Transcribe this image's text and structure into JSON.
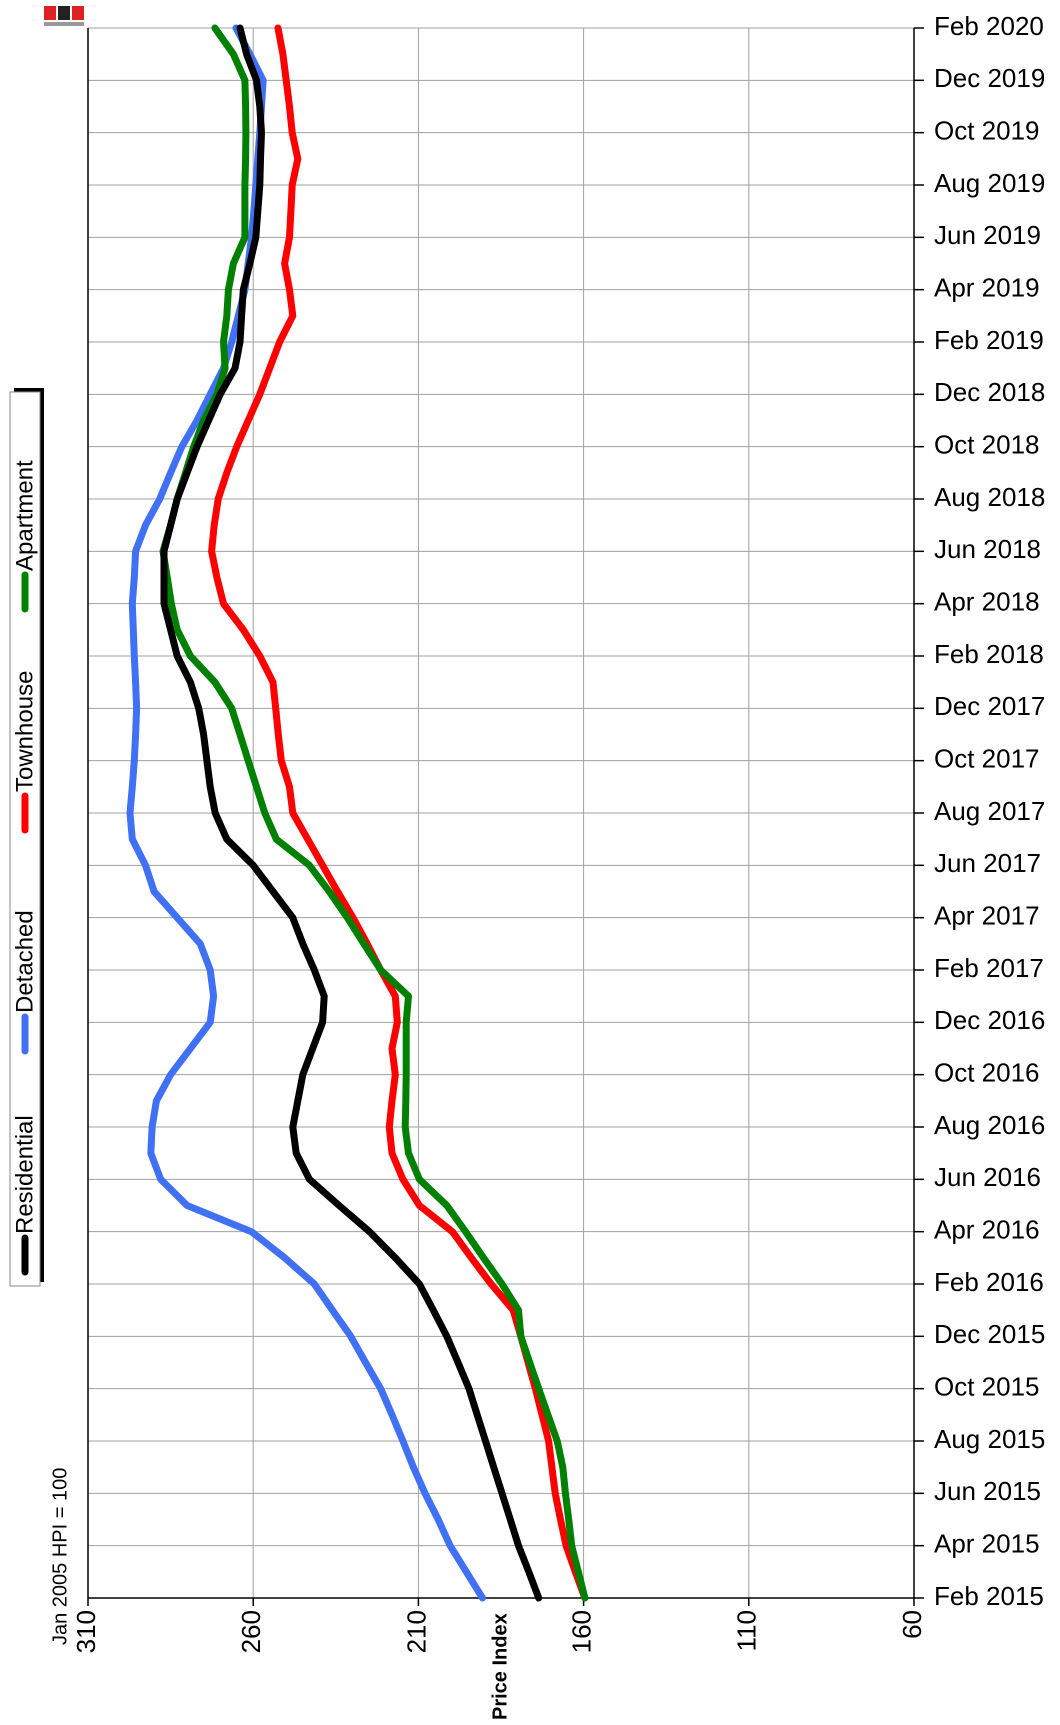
{
  "chart_data": {
    "type": "line",
    "annotation": "Jan 2005 HPI = 100",
    "ylabel": "Price Index",
    "categories": [
      "Feb 2015",
      null,
      "Apr 2015",
      null,
      "Jun 2015",
      null,
      "Aug 2015",
      null,
      "Oct 2015",
      null,
      "Dec 2015",
      null,
      "Feb 2016",
      null,
      "Apr 2016",
      null,
      "Jun 2016",
      null,
      "Aug 2016",
      null,
      "Oct 2016",
      null,
      "Dec 2016",
      null,
      "Feb 2017",
      null,
      "Apr 2017",
      null,
      "Jun 2017",
      null,
      "Aug 2017",
      null,
      "Oct 2017",
      null,
      "Dec 2017",
      null,
      "Feb 2018",
      null,
      "Apr 2018",
      null,
      "Jun 2018",
      null,
      "Aug 2018",
      null,
      "Oct 2018",
      null,
      "Dec 2018",
      null,
      "Feb 2019",
      null,
      "Apr 2019",
      null,
      "Jun 2019",
      null,
      "Aug 2019",
      null,
      "Oct 2019",
      null,
      "Dec 2019",
      null,
      "Feb 2020"
    ],
    "ylim": [
      310,
      60
    ],
    "yticks": [
      310,
      260,
      210,
      160,
      110,
      60
    ],
    "grid": true,
    "series": [
      {
        "name": "Residential",
        "color": "#000000",
        "values": [
          173.6,
          176.6,
          179.7,
          182.2,
          184.7,
          187.2,
          189.7,
          192.2,
          194.7,
          198,
          201.4,
          205.5,
          209.7,
          217,
          224.8,
          234,
          243,
          247,
          248,
          246.5,
          245,
          242,
          239,
          238.5,
          241.5,
          245,
          248,
          254,
          260,
          268,
          271.5,
          273,
          274,
          275,
          276.5,
          279,
          283,
          285,
          287,
          287,
          287,
          285,
          283,
          280,
          277,
          273.5,
          270,
          265.5,
          264,
          263.5,
          263,
          261,
          259.2,
          258.6,
          258,
          257.8,
          257.5,
          258,
          259,
          262,
          264
        ]
      },
      {
        "name": "Detached",
        "color": "#4070f4",
        "values": [
          190.6,
          195.5,
          200.4,
          204,
          208,
          211.5,
          214.7,
          218,
          221.4,
          226,
          230.5,
          236,
          241.5,
          250.5,
          260.5,
          280,
          288,
          291,
          290.6,
          289.3,
          285,
          279,
          273,
          272,
          273,
          276,
          283,
          290,
          292.6,
          296.6,
          297.3,
          296.6,
          296,
          295.6,
          295.3,
          295.6,
          296,
          296.3,
          296.6,
          296,
          295.6,
          292.6,
          288.3,
          285,
          281.6,
          277,
          273,
          269,
          266.5,
          264.5,
          262.5,
          261.5,
          260.5,
          259.8,
          259.2,
          258.6,
          258,
          257.5,
          257,
          261,
          265.2
        ]
      },
      {
        "name": "Townhouse",
        "color": "#ff0000",
        "values": [
          159.6,
          162.5,
          165.3,
          167,
          168.6,
          169.6,
          170.6,
          172.6,
          174.6,
          176.8,
          179,
          181.3,
          188,
          194,
          199.7,
          209.7,
          214.7,
          218,
          218.8,
          218,
          217,
          218,
          216.4,
          217,
          221.4,
          225.5,
          229.8,
          234.5,
          239,
          243.5,
          248,
          249,
          251.5,
          252.4,
          253.2,
          254,
          258,
          263,
          269,
          271,
          272.6,
          271.8,
          270.6,
          268,
          265,
          261.5,
          258,
          255,
          252,
          248,
          249,
          250.5,
          249,
          248.6,
          248.2,
          246.5,
          248.2,
          249,
          250,
          251,
          252.5
        ]
      },
      {
        "name": "Apartment",
        "color": "#008000",
        "values": [
          159.6,
          161.6,
          163.6,
          164.5,
          165.5,
          166.3,
          168,
          170.8,
          173.6,
          176.3,
          179,
          179.7,
          184.7,
          190.3,
          195.7,
          201.4,
          209.7,
          213,
          214,
          213.8,
          213.7,
          213.7,
          213.7,
          213,
          221.4,
          226.5,
          231.5,
          237,
          243,
          253,
          256.5,
          259,
          261.5,
          264,
          266.5,
          271.6,
          279,
          283,
          284.8,
          286,
          287.3,
          285,
          283,
          280.5,
          278,
          275,
          271,
          268.5,
          269,
          268,
          267.5,
          266,
          262.5,
          262.5,
          262.5,
          262.3,
          262.2,
          262.3,
          262.5,
          266,
          271.6
        ]
      }
    ]
  }
}
